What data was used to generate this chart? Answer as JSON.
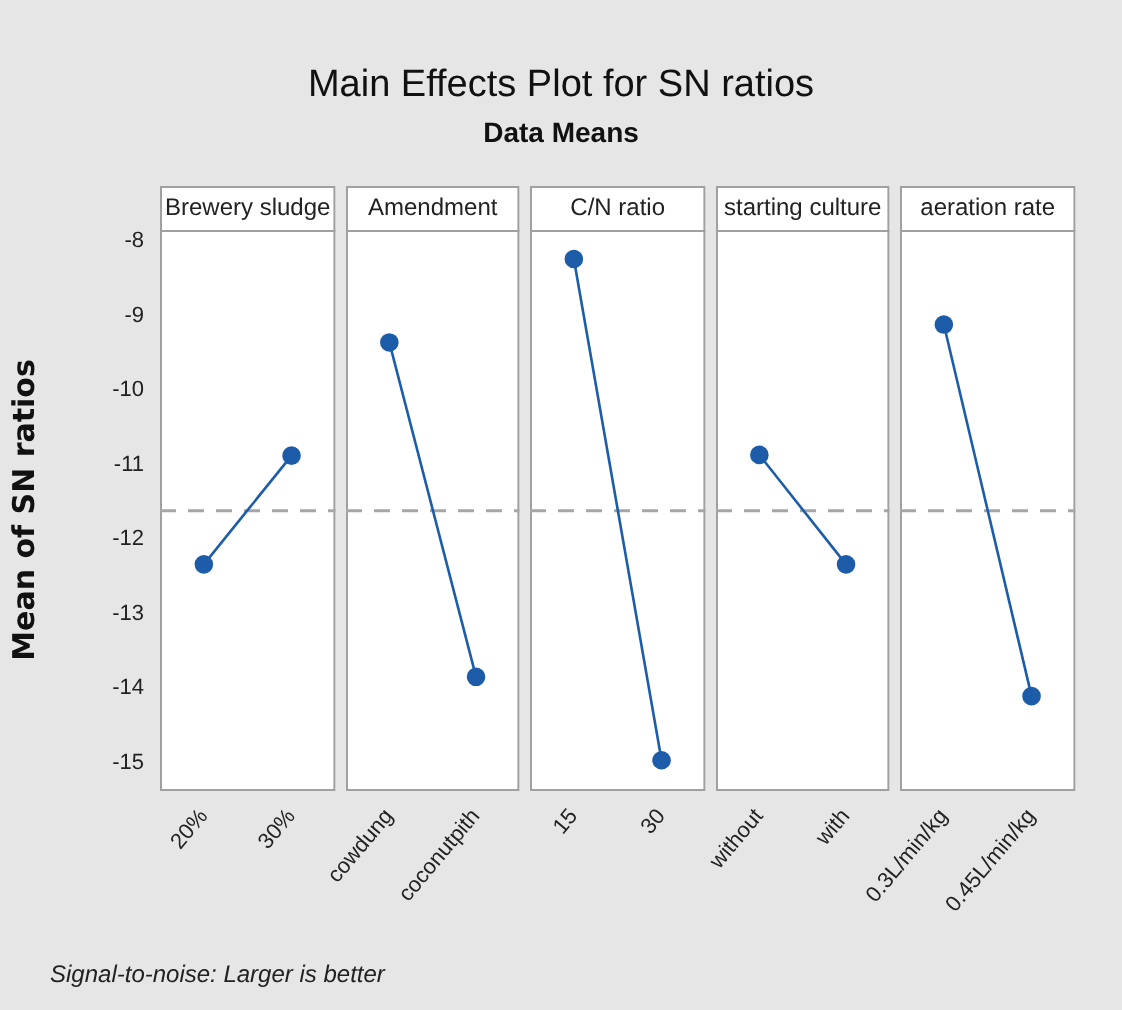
{
  "chart_data": [
    {
      "type": "other",
      "title": "Main Effects Plot for SN ratios",
      "subtitle": "Data Means",
      "annotations": [
        "Signal-to-noise: Larger is better"
      ]
    },
    {
      "type": "line",
      "title": "Brewery sludge",
      "ylabel": "Mean of SN ratios",
      "categories": [
        "20%",
        "30%"
      ],
      "values": [
        -12.34,
        -10.88
      ],
      "color": "#1d5ca8",
      "marker": "circle",
      "ylim": [
        -15.37,
        -7.85
      ],
      "yticks": [
        -15,
        -14,
        -13,
        -12,
        -11,
        -10,
        -9,
        -8
      ],
      "ref_lines": [
        {
          "axis": "y",
          "value": -11.62,
          "color": "#a6a6a6",
          "line_style": "dashed"
        }
      ]
    },
    {
      "type": "line",
      "title": "Amendment",
      "categories": [
        "cowdung",
        "coconutpith"
      ],
      "values": [
        -9.36,
        -13.85
      ],
      "color": "#1d5ca8",
      "marker": "circle",
      "ylim": [
        -15.37,
        -7.85
      ],
      "tick_labels": "x",
      "ref_lines": [
        {
          "axis": "y",
          "value": -11.62,
          "color": "#a6a6a6",
          "line_style": "dashed"
        }
      ]
    },
    {
      "type": "line",
      "title": "C/N ratio",
      "categories": [
        "15",
        "30"
      ],
      "values": [
        -8.24,
        -14.97
      ],
      "color": "#1d5ca8",
      "marker": "circle",
      "ylim": [
        -15.37,
        -7.85
      ],
      "tick_labels": "x",
      "ref_lines": [
        {
          "axis": "y",
          "value": -11.62,
          "color": "#a6a6a6",
          "line_style": "dashed"
        }
      ]
    },
    {
      "type": "line",
      "title": "starting culture",
      "categories": [
        "without",
        "with"
      ],
      "values": [
        -10.87,
        -12.34
      ],
      "color": "#1d5ca8",
      "marker": "circle",
      "ylim": [
        -15.37,
        -7.85
      ],
      "tick_labels": "x",
      "ref_lines": [
        {
          "axis": "y",
          "value": -11.62,
          "color": "#a6a6a6",
          "line_style": "dashed"
        }
      ]
    },
    {
      "type": "line",
      "title": "aeration rate",
      "categories": [
        "0.3L/min/kg",
        "0.45L/min/kg"
      ],
      "values": [
        -9.12,
        -14.11
      ],
      "color": "#1d5ca8",
      "marker": "circle",
      "ylim": [
        -15.37,
        -7.85
      ],
      "tick_labels": "x",
      "ref_lines": [
        {
          "axis": "y",
          "value": -11.62,
          "color": "#a6a6a6",
          "line_style": "dashed"
        }
      ]
    }
  ]
}
